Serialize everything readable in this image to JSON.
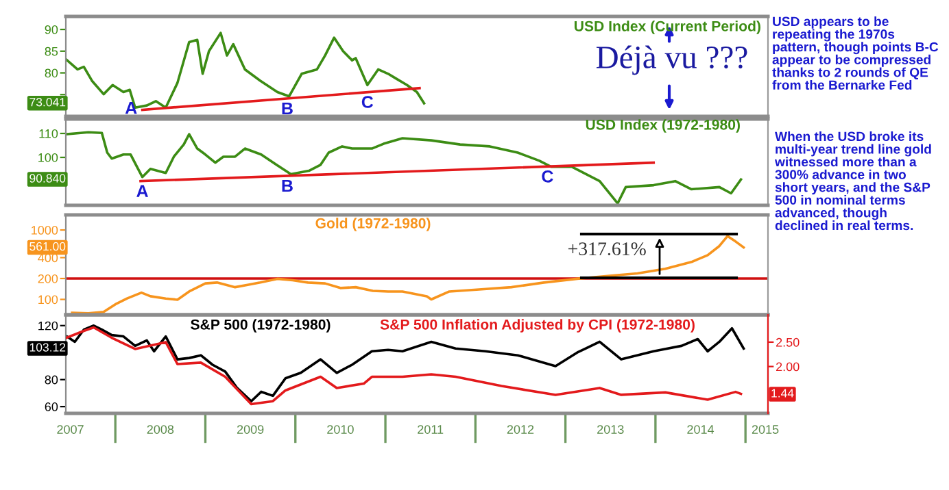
{
  "chart_data": [
    {
      "type": "line",
      "xlim": [
        2007.45,
        2015.25
      ],
      "ylim": [
        70,
        93
      ],
      "yticks": [
        {
          "value": 75,
          "label": null
        },
        80,
        85,
        90
      ],
      "tick_labels": "y",
      "series": [
        {
          "name": "USD Index (Current Period)",
          "color": "#3c8c14",
          "x": [
            2007.46,
            2007.58,
            2007.65,
            2007.74,
            2007.87,
            2007.97,
            2008.09,
            2008.16,
            2008.22,
            2008.35,
            2008.45,
            2008.56,
            2008.69,
            2008.82,
            2008.91,
            2008.97,
            2009.04,
            2009.17,
            2009.24,
            2009.31,
            2009.44,
            2009.61,
            2009.8,
            2009.93,
            2010.07,
            2010.24,
            2010.33,
            2010.43,
            2010.53,
            2010.63,
            2010.67,
            2010.8,
            2010.92,
            2011.03,
            2011.11,
            2011.24,
            2011.35,
            2011.43
          ],
          "values": [
            83.0,
            80.8,
            81.4,
            78.2,
            75.1,
            77.2,
            75.6,
            76.1,
            72.0,
            72.5,
            73.5,
            72.0,
            77.7,
            87.1,
            87.6,
            79.8,
            85.0,
            89.2,
            84.0,
            86.6,
            80.8,
            78.2,
            75.6,
            74.6,
            79.8,
            80.8,
            84.0,
            88.1,
            85.0,
            82.9,
            83.4,
            77.2,
            80.8,
            79.8,
            78.8,
            77.2,
            75.6,
            73.0
          ]
        },
        {
          "color": "#e31a1c",
          "x": [
            2008.3,
            2011.38
          ],
          "values": [
            71.5,
            76.5
          ]
        }
      ],
      "annotations": [
        "Déjà vu ???",
        "USD appears to be\nrepeating the 1970s\npattern, though points B-C\nappear to be compressed\nthanks to 2 rounds of QE\nfrom the Bernarke Fed",
        {
          "text": "A",
          "x": 2008.35,
          "y": 71.6
        },
        {
          "text": "B",
          "x": 2009.91,
          "y": 74.1
        },
        {
          "text": "C",
          "x": 2010.8,
          "y": 75.6
        },
        {
          "text": "73.041",
          "y": 73.041
        }
      ]
    },
    {
      "type": "line",
      "xlim": [
        2007.45,
        2015.25
      ],
      "ylim": [
        80,
        116
      ],
      "yticks": [
        100,
        110
      ],
      "tick_labels": "y",
      "series": [
        {
          "name": "USD Index (1972-1980)",
          "color": "#3c8c14",
          "x": [
            2007.46,
            2007.7,
            2007.85,
            2007.91,
            2007.96,
            2008.09,
            2008.17,
            2008.24,
            2008.3,
            2008.39,
            2008.56,
            2008.65,
            2008.76,
            2008.82,
            2008.91,
            2009.0,
            2009.11,
            2009.2,
            2009.33,
            2009.44,
            2009.62,
            2009.79,
            2009.95,
            2010.15,
            2010.28,
            2010.37,
            2010.52,
            2010.63,
            2010.85,
            2010.98,
            2011.19,
            2011.51,
            2011.83,
            2012.16,
            2012.47,
            2012.71,
            2012.84,
            2013.07,
            2013.38,
            2013.58,
            2013.67,
            2013.98,
            2014.22,
            2014.4,
            2014.71,
            2014.84,
            2014.95
          ],
          "values": [
            109.7,
            110.5,
            110.2,
            102.0,
            99.5,
            101.2,
            101.2,
            96.1,
            91.8,
            95.2,
            93.5,
            100.3,
            105.4,
            109.7,
            103.7,
            101.2,
            97.8,
            100.3,
            100.3,
            103.7,
            101.2,
            96.9,
            93.0,
            94.4,
            96.9,
            102.0,
            104.6,
            103.7,
            103.7,
            105.7,
            108.0,
            107.1,
            105.4,
            104.6,
            102.0,
            98.6,
            96.1,
            96.1,
            90.1,
            80.8,
            87.6,
            88.4,
            90.1,
            86.7,
            87.6,
            85.0,
            90.8
          ]
        },
        {
          "color": "#e31a1c",
          "x": [
            2008.28,
            2013.98
          ],
          "values": [
            90.1,
            97.8
          ]
        }
      ],
      "annotations": [
        "When the USD broke its\nmulti-year trend line gold\nwitnessed more than a\n300% advance in two\nshort years, and the S&P\n500 in nominal terms\nadvanced, though\ndeclined in real terms.",
        {
          "text": "A",
          "x": 2008.3,
          "y": 90.1
        },
        {
          "text": "B",
          "x": 2009.91,
          "y": 92.3
        },
        {
          "text": "C",
          "x": 2012.8,
          "y": 96.2
        },
        {
          "text": "90.840",
          "y": 90.84
        }
      ]
    },
    {
      "type": "line",
      "xlim": [
        2007.45,
        2015.25
      ],
      "ylim": [
        60,
        1650
      ],
      "yticks": [
        100,
        200,
        400,
        1000
      ],
      "log": true,
      "tick_labels": "y",
      "series": [
        {
          "name": "Gold (1972-1980)",
          "color": "#f7941d",
          "x": [
            2007.52,
            2007.7,
            2007.87,
            2008.0,
            2008.13,
            2008.29,
            2008.39,
            2008.56,
            2008.69,
            2008.82,
            2009.0,
            2009.13,
            2009.33,
            2009.48,
            2009.61,
            2009.8,
            2009.97,
            2010.14,
            2010.33,
            2010.5,
            2010.67,
            2010.86,
            2011.03,
            2011.19,
            2011.46,
            2011.51,
            2011.71,
            2012.04,
            2012.4,
            2012.76,
            2013.13,
            2013.49,
            2013.8,
            2014.11,
            2014.4,
            2014.58,
            2014.71,
            2014.8,
            2014.89,
            2014.98
          ],
          "values": [
            64,
            63,
            66,
            85,
            103,
            125,
            111,
            103,
            99,
            130,
            170,
            175,
            150,
            163,
            175,
            198,
            189,
            175,
            170,
            146,
            150,
            133,
            130,
            130,
            111,
            100,
            130,
            139,
            150,
            175,
            198,
            219,
            237,
            276,
            346,
            434,
            588,
            815,
            683,
            561
          ]
        }
      ],
      "ref_lines": [
        {
          "axis": "y",
          "value": 200,
          "color": "#d01010"
        }
      ],
      "annotations": [
        {
          "text": "+317.61%",
          "x": 2014.8,
          "y": 815
        },
        {
          "text": "561.00",
          "y": 561
        }
      ]
    },
    {
      "type": "line",
      "xlim": [
        2007.45,
        2015.25
      ],
      "ylim": [
        55,
        128
      ],
      "yticks": [
        60,
        80,
        120
      ],
      "y2lim": [
        1.04,
        3.06
      ],
      "y2ticks": [
        {
          "value": 2,
          "label": "2.00"
        },
        {
          "value": 2.5,
          "label": "2.50"
        }
      ],
      "xticks": [
        {
          "value": 2007.5,
          "label": "2007"
        },
        {
          "value": 2008.5,
          "label": "2008"
        },
        {
          "value": 2009.5,
          "label": "2009"
        },
        {
          "value": 2010.5,
          "label": "2010"
        },
        {
          "value": 2011.5,
          "label": "2011"
        },
        {
          "value": 2012.5,
          "label": "2012"
        },
        {
          "value": 2013.5,
          "label": "2013"
        },
        {
          "value": 2014.5,
          "label": "2014"
        },
        {
          "value": 2015.22,
          "label": "2015"
        }
      ],
      "series": [
        {
          "name": "S&P 500 (1972-1980)",
          "color": "#000000",
          "x": [
            2007.46,
            2007.55,
            2007.65,
            2007.76,
            2007.85,
            2007.96,
            2008.09,
            2008.22,
            2008.35,
            2008.43,
            2008.56,
            2008.69,
            2008.82,
            2008.95,
            2009.08,
            2009.22,
            2009.35,
            2009.51,
            2009.62,
            2009.75,
            2009.89,
            2010.06,
            2010.28,
            2010.46,
            2010.63,
            2010.85,
            2011.03,
            2011.19,
            2011.51,
            2011.78,
            2012.11,
            2012.47,
            2012.89,
            2013.13,
            2013.38,
            2013.62,
            2013.98,
            2014.29,
            2014.47,
            2014.58,
            2014.71,
            2014.85,
            2014.98
          ],
          "values": [
            112,
            108,
            117,
            120,
            117,
            113,
            112,
            105,
            109,
            101,
            112,
            95,
            96,
            98,
            91,
            86,
            74,
            64,
            71,
            68,
            81,
            85,
            95,
            85,
            91,
            101,
            102,
            101,
            108,
            103,
            101,
            98,
            90,
            100,
            108,
            95,
            101,
            105,
            110,
            101,
            108,
            118,
            103
          ]
        },
        {
          "name": "S&P 500 Inflation Adjusted by CPI (1972-1980)",
          "color": "#e31a1c",
          "axis": "y2",
          "x": [
            2007.46,
            2007.65,
            2007.76,
            2007.96,
            2008.22,
            2008.56,
            2008.69,
            2008.95,
            2009.22,
            2009.51,
            2009.75,
            2009.89,
            2010.28,
            2010.46,
            2010.76,
            2010.85,
            2011.19,
            2011.51,
            2011.78,
            2012.29,
            2012.89,
            2013.38,
            2013.62,
            2014.11,
            2014.58,
            2014.89,
            2014.95
          ],
          "values": [
            2.59,
            2.73,
            2.8,
            2.59,
            2.36,
            2.5,
            2.05,
            2.08,
            1.79,
            1.23,
            1.29,
            1.51,
            1.79,
            1.56,
            1.65,
            1.79,
            1.79,
            1.84,
            1.79,
            1.6,
            1.42,
            1.56,
            1.42,
            1.47,
            1.32,
            1.48,
            1.44
          ]
        }
      ],
      "annotations": [
        {
          "text": "103.12",
          "y": 103.12
        },
        "1.44"
      ]
    }
  ]
}
